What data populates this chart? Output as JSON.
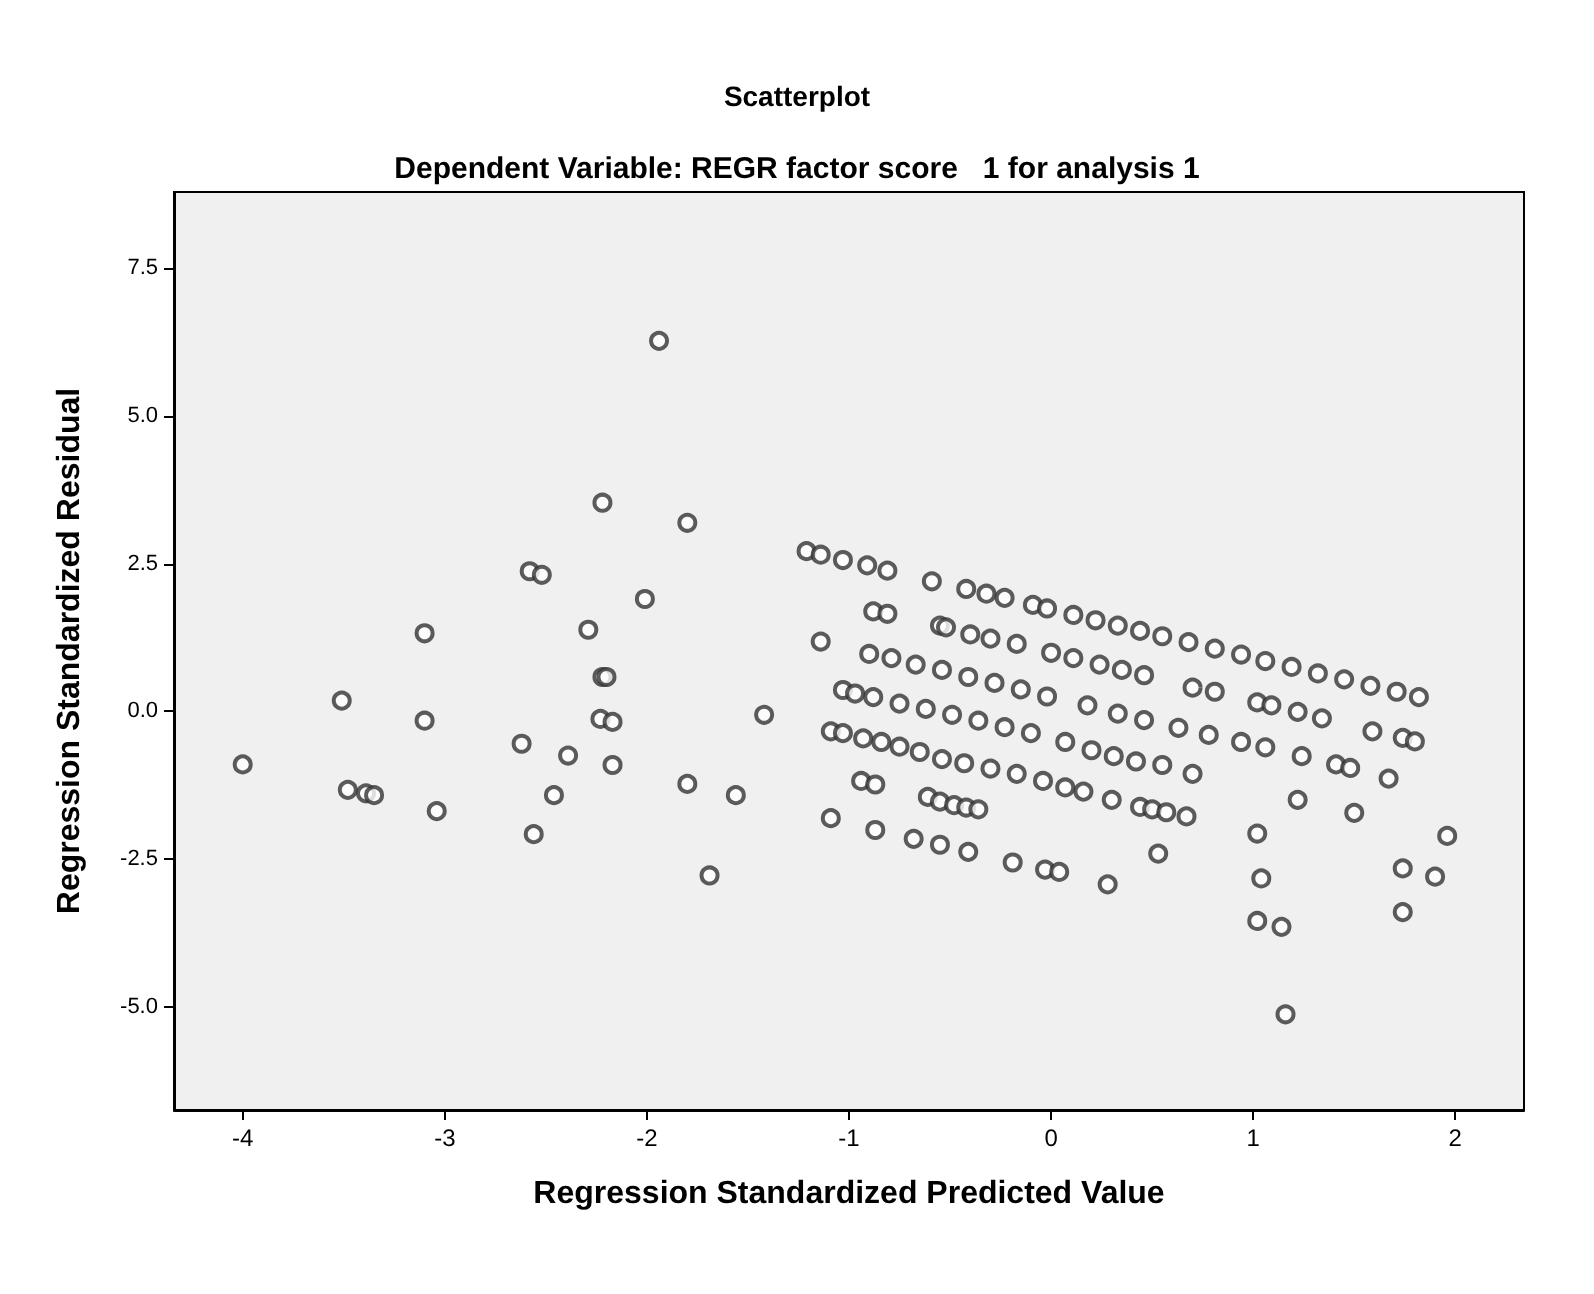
{
  "chart_data": {
    "type": "scatter",
    "title": "Scatterplot",
    "subtitle": "Dependent Variable: REGR factor score   1 for analysis 1",
    "xlabel": "Regression Standardized Predicted Value",
    "ylabel": "Regression Standardized Residual",
    "marker": "circle",
    "xlim": [
      -4.34,
      2.34
    ],
    "ylim": [
      -6.75,
      8.79
    ],
    "xticks": [
      -4,
      -3,
      -2,
      -1,
      0,
      1,
      2
    ],
    "yticks": [
      {
        "value": -5,
        "label": "-5.0"
      },
      -2.5,
      {
        "value": 0,
        "label": "0.0"
      },
      2.5,
      {
        "value": 5,
        "label": "5.0"
      },
      7.5
    ],
    "series": [
      {
        "color": "#333333",
        "x": [
          -4.0,
          -3.51,
          -3.48,
          -3.39,
          -3.35,
          -3.1,
          -3.1,
          -3.04,
          -2.62,
          -2.58,
          -2.52,
          -2.56,
          -2.46,
          -2.39,
          -2.29,
          -2.22,
          -2.22,
          -2.2,
          -2.23,
          -2.17,
          -2.17,
          -2.01,
          -1.94,
          -1.8,
          -1.8,
          -1.69,
          -1.56,
          -1.42,
          -1.21,
          -1.14,
          -1.03,
          -0.91,
          -0.81,
          -0.59,
          -0.42,
          -0.32,
          -0.23,
          -0.09,
          -0.02,
          0.11,
          0.22,
          0.33,
          0.44,
          0.55,
          0.68,
          0.81,
          0.94,
          1.06,
          1.19,
          1.32,
          1.45,
          1.58,
          1.71,
          1.82,
          -0.88,
          -0.81,
          -0.55,
          -0.52,
          -0.4,
          -0.3,
          -0.17,
          0.0,
          0.11,
          0.24,
          0.35,
          0.46,
          0.7,
          0.81,
          1.02,
          1.09,
          1.22,
          1.34,
          1.59,
          1.74,
          1.8,
          -1.14,
          -0.9,
          -0.79,
          -0.67,
          -0.54,
          -0.41,
          -0.28,
          -0.15,
          -0.02,
          0.18,
          0.33,
          0.46,
          0.63,
          0.78,
          0.94,
          1.06,
          1.24,
          1.41,
          1.48,
          1.67,
          -1.03,
          -0.97,
          -0.88,
          -0.75,
          -0.62,
          -0.49,
          -0.36,
          -0.23,
          -0.1,
          0.07,
          0.2,
          0.31,
          0.42,
          0.55,
          0.7,
          -1.09,
          -1.03,
          -0.93,
          -0.84,
          -0.75,
          -0.65,
          -0.54,
          -0.43,
          -0.3,
          -0.17,
          -0.04,
          0.07,
          0.16,
          0.3,
          0.44,
          0.5,
          0.57,
          0.67,
          -0.94,
          -0.87,
          -0.61,
          -0.55,
          -0.48,
          -0.42,
          -0.36,
          -1.09,
          -0.87,
          -0.68,
          -0.55,
          -0.41,
          -0.19,
          -0.03,
          0.04,
          0.28,
          0.53,
          1.22,
          1.5,
          1.02,
          1.04,
          1.02,
          1.14,
          1.16,
          1.96,
          1.74,
          1.9,
          1.74
        ],
        "values": [
          -0.9,
          0.18,
          -1.33,
          -1.39,
          -1.42,
          1.32,
          -0.16,
          -1.69,
          -0.55,
          2.37,
          2.31,
          -2.08,
          -1.42,
          -0.75,
          1.38,
          3.53,
          0.58,
          0.58,
          -0.13,
          -0.18,
          -0.91,
          1.9,
          6.27,
          3.19,
          -1.23,
          -2.78,
          -1.42,
          -0.06,
          2.71,
          2.65,
          2.56,
          2.47,
          2.38,
          2.2,
          2.07,
          1.99,
          1.92,
          1.8,
          1.74,
          1.63,
          1.54,
          1.45,
          1.36,
          1.27,
          1.17,
          1.06,
          0.96,
          0.85,
          0.75,
          0.64,
          0.54,
          0.43,
          0.33,
          0.24,
          1.69,
          1.65,
          1.45,
          1.42,
          1.3,
          1.23,
          1.14,
          0.99,
          0.9,
          0.79,
          0.7,
          0.61,
          0.4,
          0.33,
          0.15,
          0.1,
          -0.01,
          -0.12,
          -0.34,
          -0.45,
          -0.51,
          1.18,
          0.97,
          0.9,
          0.79,
          0.7,
          0.58,
          0.48,
          0.37,
          0.25,
          0.1,
          -0.04,
          -0.15,
          -0.28,
          -0.4,
          -0.52,
          -0.61,
          -0.76,
          -0.9,
          -0.96,
          -1.14,
          0.36,
          0.3,
          0.24,
          0.13,
          0.04,
          -0.06,
          -0.16,
          -0.27,
          -0.37,
          -0.52,
          -0.66,
          -0.76,
          -0.85,
          -0.91,
          -1.06,
          -0.34,
          -0.37,
          -0.46,
          -0.52,
          -0.6,
          -0.69,
          -0.81,
          -0.88,
          -0.97,
          -1.06,
          -1.18,
          -1.29,
          -1.36,
          -1.5,
          -1.62,
          -1.66,
          -1.71,
          -1.78,
          -1.18,
          -1.24,
          -1.45,
          -1.53,
          -1.59,
          -1.63,
          -1.66,
          -1.81,
          -2.01,
          -2.16,
          -2.26,
          -2.38,
          -2.56,
          -2.68,
          -2.72,
          -2.93,
          -2.41,
          -1.5,
          -1.72,
          -2.07,
          -2.83,
          -3.55,
          -3.65,
          -5.13,
          -2.11,
          -2.66,
          -2.8,
          -3.4
        ]
      }
    ]
  }
}
